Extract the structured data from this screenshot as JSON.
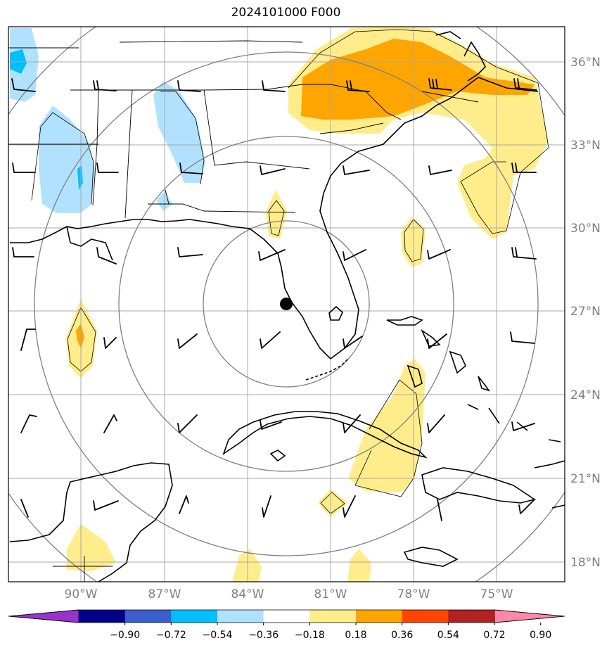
{
  "title": "2024101000 F000",
  "lat_labels": [
    "36°N",
    "33°N",
    "30°N",
    "27°N",
    "24°N",
    "21°N",
    "18°N"
  ],
  "lon_labels": [
    "90°W",
    "87°W",
    "84°W",
    "81°W",
    "78°W",
    "75°W"
  ],
  "colorbar": {
    "ticks": [
      "−0.90",
      "−0.72",
      "−0.54",
      "−0.36",
      "−0.18",
      "0.18",
      "0.36",
      "0.54",
      "0.72",
      "0.90"
    ],
    "colors": [
      "#9932cc",
      "#00008b",
      "#3a5fcd",
      "#00bfff",
      "#b0e2ff",
      "#ffffff",
      "#ffec8b",
      "#ffa500",
      "#ff4500",
      "#b22222",
      "#ff88aa"
    ]
  },
  "center_marker": {
    "lon": -82.5,
    "lat": 27.8,
    "label": ""
  },
  "colors": {
    "grid": "#a0a0a0",
    "rings": "#808080",
    "coast": "#000000"
  }
}
